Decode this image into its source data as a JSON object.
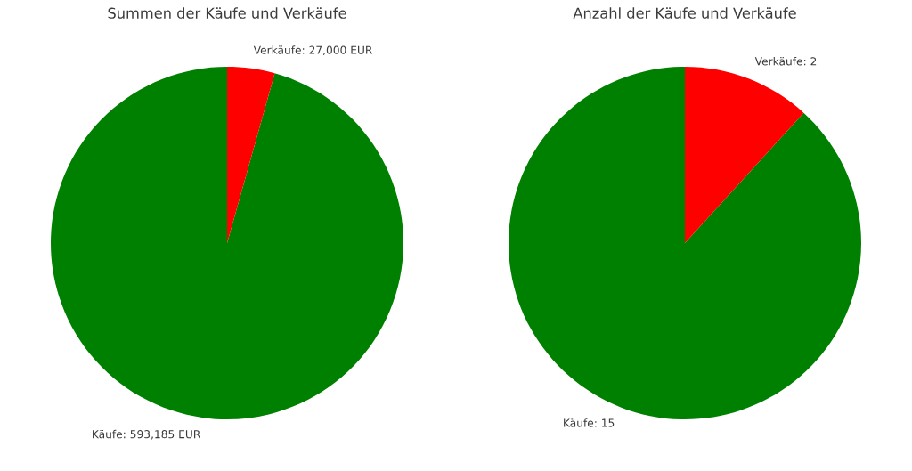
{
  "chart_data": [
    {
      "type": "pie",
      "title": "Summen der Käufe und Verkäufe",
      "categories": [
        "Käufe",
        "Verkäufe"
      ],
      "values": [
        593185,
        27000
      ],
      "colors": [
        "#008000",
        "#ff0000"
      ],
      "value_labels": [
        "593,185 EUR",
        "27,000 EUR"
      ]
    },
    {
      "type": "pie",
      "title": "Anzahl der Käufe und Verkäufe",
      "categories": [
        "Käufe",
        "Verkäufe"
      ],
      "values": [
        15,
        2
      ],
      "colors": [
        "#008000",
        "#ff0000"
      ],
      "value_labels": [
        "15",
        "2"
      ]
    }
  ]
}
